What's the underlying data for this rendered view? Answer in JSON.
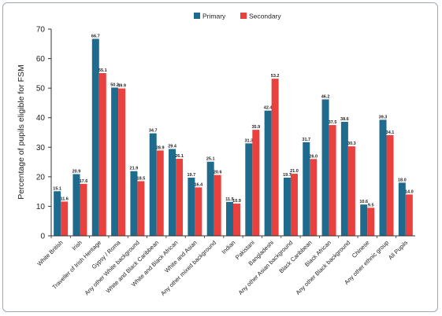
{
  "chart_data": {
    "type": "bar",
    "title": "",
    "xlabel": "",
    "ylabel": "Percentage of pupils eligible for FSM",
    "ylim": [
      0,
      70
    ],
    "yticks": [
      0,
      10,
      20,
      30,
      40,
      50,
      60,
      70
    ],
    "grid": false,
    "legend_position": "top",
    "categories": [
      "White British",
      "Irish",
      "Traveller of Irish Heritage",
      "Gypsy / Roma",
      "Any other White background",
      "White and Black Caribbean",
      "White and Black African",
      "White and Asian",
      "Any other mixed background",
      "Indian",
      "Pakistani",
      "Bangladeshi",
      "Any other Asian background",
      "Black Caribbean",
      "Black African",
      "Any other Black background",
      "Chinese",
      "Any other ethnic group",
      "All Pupils"
    ],
    "series": [
      {
        "name": "Primary",
        "color": "#1f6b8e",
        "values": [
          15.1,
          20.9,
          66.7,
          50.2,
          21.9,
          34.7,
          29.4,
          19.7,
          25.1,
          11.5,
          31.3,
          42.4,
          19.7,
          31.7,
          46.2,
          38.6,
          10.6,
          39.3,
          18.0
        ],
        "labels": [
          "15.1",
          "20.9",
          "66.7",
          "50.2",
          "21.9",
          "34.7",
          "29.4",
          "19.7",
          "25.1",
          "11.5",
          "31.3",
          "42.4",
          "19.7",
          "31.7",
          "46.2",
          "38.6",
          "10.6",
          "39.3",
          "18.0"
        ]
      },
      {
        "name": "Secondary",
        "color": "#e8413e",
        "values": [
          11.6,
          17.6,
          55.1,
          49.9,
          18.5,
          28.9,
          26.1,
          16.4,
          20.6,
          10.9,
          35.9,
          53.2,
          21.0,
          26.0,
          37.5,
          30.3,
          9.5,
          34.1,
          14.0
        ],
        "labels": [
          "11.6",
          "17.6",
          "55.1",
          "49.9",
          "18.5",
          "28.9",
          "26.1",
          "16.4",
          "20.6",
          "10.9",
          "35.9",
          "53.2",
          "21.0",
          "26.0",
          "37.5",
          "30.3",
          "9.5",
          "34.1",
          "14.0"
        ]
      }
    ]
  }
}
